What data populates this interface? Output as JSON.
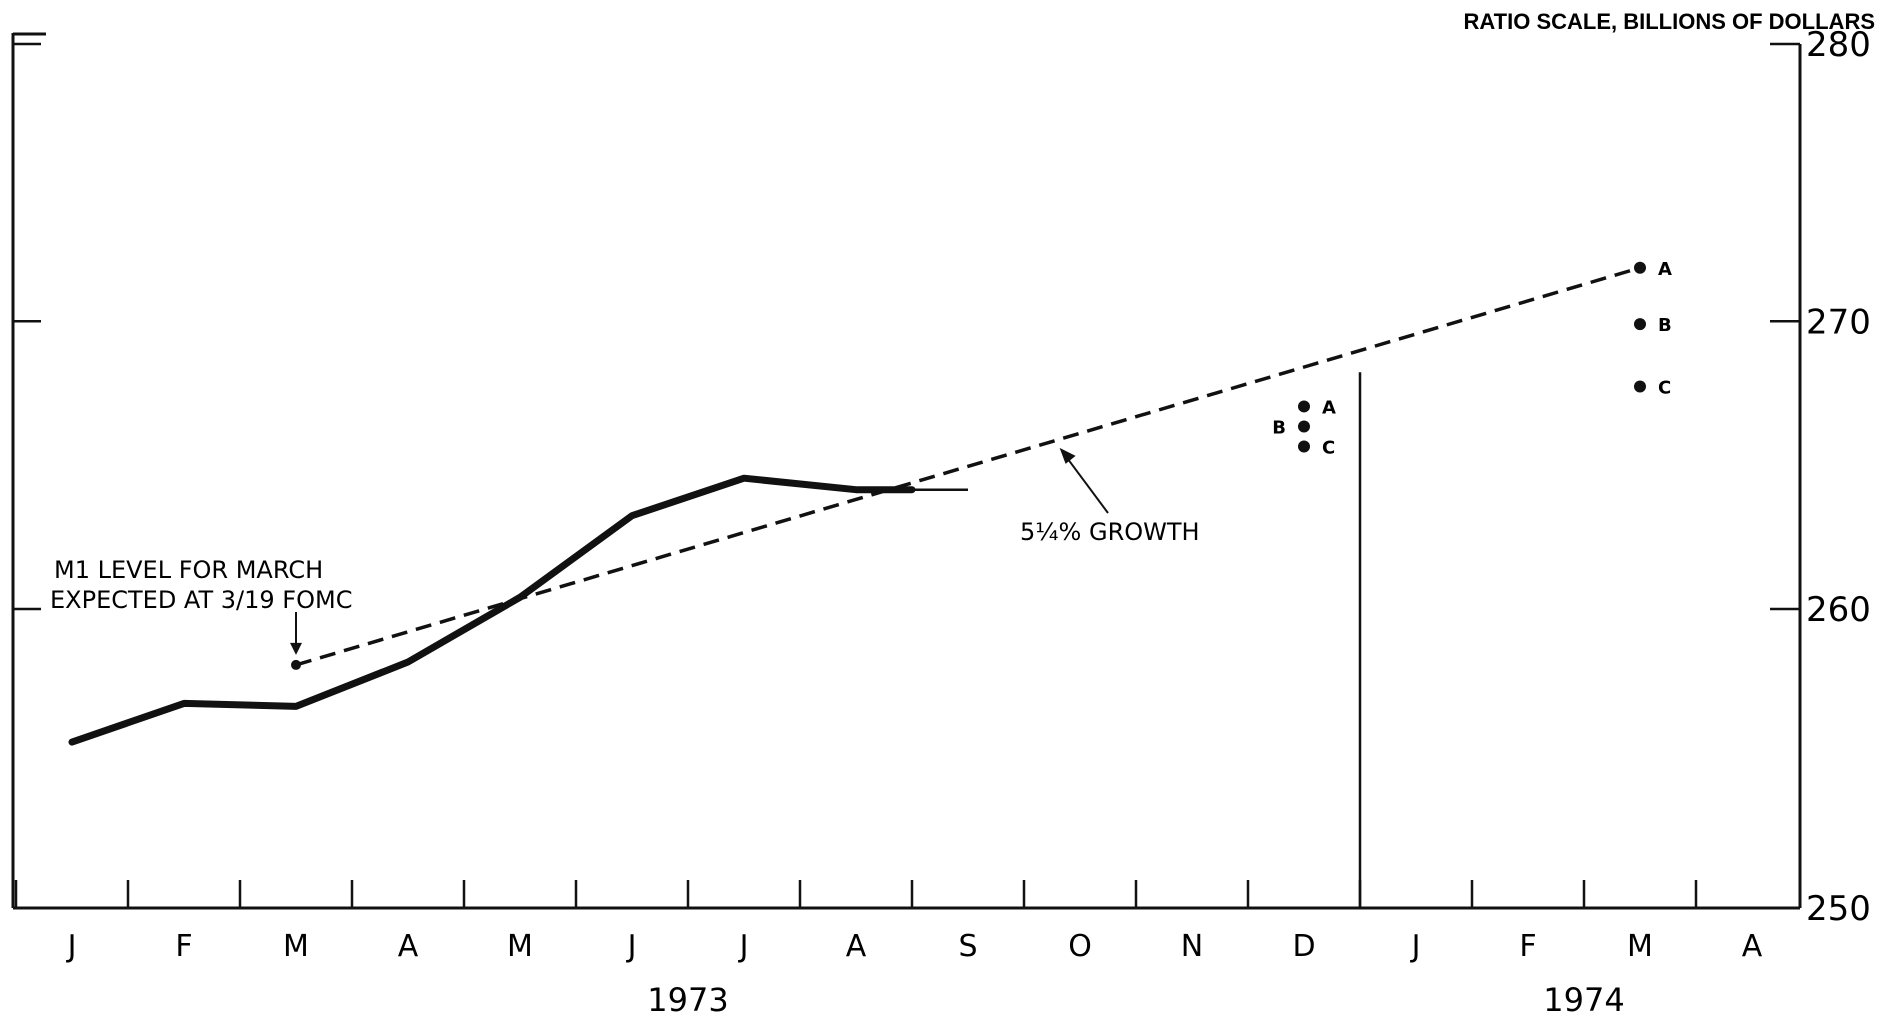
{
  "chart_data": {
    "type": "line",
    "title": "",
    "ylabel": "RATIO SCALE, BILLIONS OF DOLLARS",
    "y_scale": "log",
    "ylim": [
      250,
      280
    ],
    "y_ticks": [
      250,
      260,
      270,
      280
    ],
    "categories": [
      "J",
      "F",
      "M",
      "A",
      "M",
      "J",
      "J",
      "A",
      "S",
      "O",
      "N",
      "D",
      "J",
      "F",
      "M",
      "A"
    ],
    "year_labels": [
      {
        "label": "1973",
        "month_from": 0,
        "month_to": 11
      },
      {
        "label": "1974",
        "month_from": 12,
        "month_to": 15
      }
    ],
    "series": [
      {
        "style": "solid-thick",
        "points": [
          {
            "month": 0,
            "value": 255.5
          },
          {
            "month": 1,
            "value": 256.8
          },
          {
            "month": 2,
            "value": 256.7
          },
          {
            "month": 3,
            "value": 258.2
          },
          {
            "month": 4,
            "value": 260.4
          },
          {
            "month": 5,
            "value": 263.2
          },
          {
            "month": 6,
            "value": 264.5
          },
          {
            "month": 7,
            "value": 264.1
          },
          {
            "month": 7.5,
            "value": 264.1
          }
        ]
      },
      {
        "style": "dashed",
        "points": [
          {
            "month": 2,
            "value": 258.1
          },
          {
            "month": 14,
            "value": 271.9
          }
        ]
      }
    ],
    "alternatives": [
      {
        "label": "A",
        "month": 11,
        "value": 267.0
      },
      {
        "label": "B",
        "month": 11,
        "value": 266.3
      },
      {
        "label": "C",
        "month": 11,
        "value": 265.6
      },
      {
        "label": "A",
        "month": 14,
        "value": 271.9
      },
      {
        "label": "B",
        "month": 14,
        "value": 269.9
      },
      {
        "label": "C",
        "month": 14,
        "value": 267.7
      }
    ],
    "annotations": [
      {
        "lines": [
          "M1 LEVEL FOR MARCH",
          "EXPECTED AT 3/19 FOMC"
        ],
        "month": 2,
        "value": 258.1
      },
      {
        "lines": [
          "5¼% GROWTH"
        ],
        "month": 8.8,
        "value": 265.9
      }
    ],
    "grid": false,
    "year_divider_month": 11.5
  }
}
